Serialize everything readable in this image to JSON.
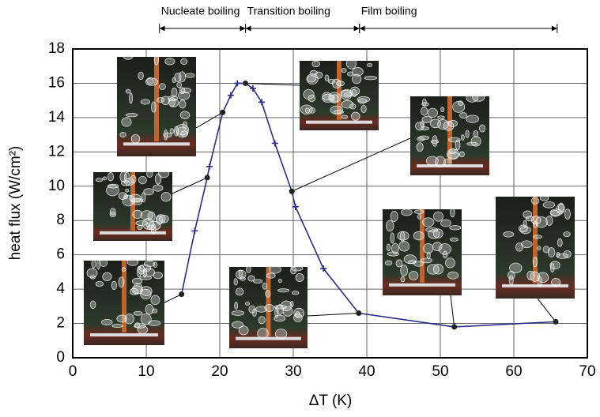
{
  "chart_data": {
    "type": "line",
    "x_label": "ΔT (K)",
    "y_label": "heat flux (W/cm²)",
    "x": [
      14.8,
      16.6,
      18.3,
      18.6,
      20.4,
      21.5,
      22.4,
      23.5,
      24.5,
      25.7,
      27.5,
      29.8,
      30.3,
      34.1,
      38.9,
      51.9,
      65.7
    ],
    "series": [
      {
        "color": "#2b2b8c",
        "values": [
          3.7,
          7.4,
          10.5,
          11.15,
          14.3,
          15.3,
          16.0,
          16.0,
          15.7,
          14.9,
          12.5,
          9.7,
          8.8,
          5.2,
          2.6,
          1.8,
          2.1
        ],
        "markers": [
          "dot",
          "plus",
          "dot",
          "plus",
          "dot",
          "plus",
          "plus",
          "dot",
          "plus",
          "plus",
          "plus",
          "dot",
          "plus",
          "plus",
          "dot",
          "dot",
          "dot"
        ]
      }
    ],
    "xlim": [
      0,
      70
    ],
    "xticks": [
      0,
      10,
      20,
      30,
      40,
      50,
      60,
      70
    ],
    "ylim": [
      0,
      18
    ],
    "yticks": [
      0,
      2,
      4,
      6,
      8,
      10,
      12,
      14,
      16,
      18
    ],
    "grid": true,
    "regimes": [
      {
        "label": "Nucleate boiling",
        "start": 11.8,
        "end": 23.5
      },
      {
        "label": "Transition boiling",
        "start": 23.5,
        "end": 39
      },
      {
        "label": "Film boiling",
        "start": 39,
        "end": 65.9
      }
    ]
  }
}
